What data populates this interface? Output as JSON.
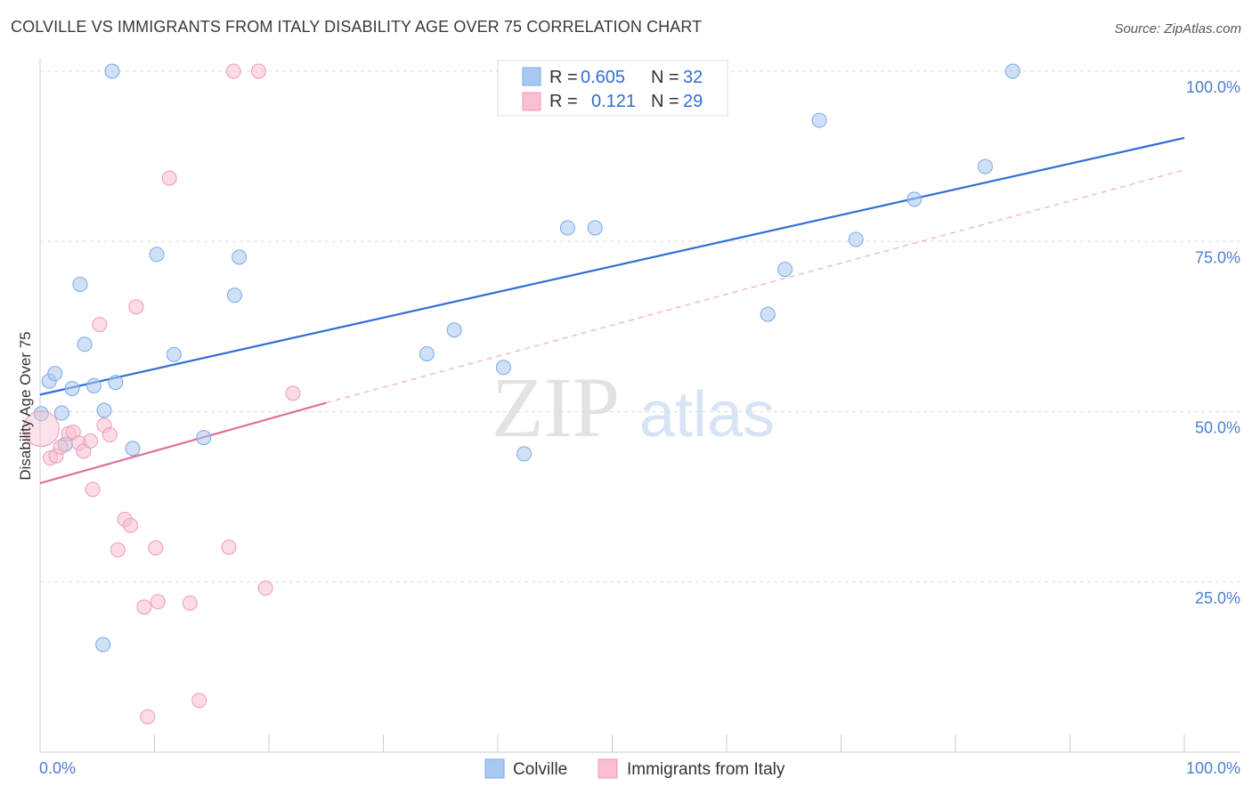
{
  "title": "COLVILLE VS IMMIGRANTS FROM ITALY DISABILITY AGE OVER 75 CORRELATION CHART",
  "source": "Source: ZipAtlas.com",
  "watermark": {
    "zip": "ZIP",
    "atlas": "atlas"
  },
  "chart_data": {
    "type": "scatter",
    "title": "COLVILLE VS IMMIGRANTS FROM ITALY DISABILITY AGE OVER 75 CORRELATION CHART",
    "xlabel": "",
    "ylabel": "Disability Age Over 75",
    "xlim": [
      0,
      100
    ],
    "ylim": [
      0,
      100
    ],
    "x_tick_labels": {
      "min": "0.0%",
      "max": "100.0%"
    },
    "y_tick_labels": [
      "100.0%",
      "75.0%",
      "50.0%",
      "25.0%"
    ],
    "y_tick_values": [
      100,
      75,
      50,
      25
    ],
    "grid": "dashed horizontal",
    "legend": [
      {
        "name": "Colville",
        "r_label": "R =",
        "r": "0.605",
        "n_label": "N =",
        "n": "32",
        "color": "#a9c8f0",
        "stroke": "#7aa9e6"
      },
      {
        "name": "Immigrants from Italy",
        "r_label": "R =",
        "r": "0.121",
        "n_label": "N =",
        "n": "29",
        "color": "#f7bfd0",
        "stroke": "#ee9ab4"
      }
    ],
    "series": [
      {
        "name": "Colville",
        "color": "#a9c8f0",
        "trend": {
          "x": [
            0,
            100
          ],
          "y": [
            52.5,
            90.2
          ],
          "color": "#2f6fd6",
          "style": "solid"
        },
        "points": [
          {
            "x": 0.1,
            "y": 49.7
          },
          {
            "x": 0.8,
            "y": 54.5
          },
          {
            "x": 1.3,
            "y": 55.6
          },
          {
            "x": 1.9,
            "y": 49.8
          },
          {
            "x": 2.2,
            "y": 45.2
          },
          {
            "x": 2.8,
            "y": 53.4
          },
          {
            "x": 3.5,
            "y": 68.7
          },
          {
            "x": 3.9,
            "y": 59.9
          },
          {
            "x": 4.7,
            "y": 53.8
          },
          {
            "x": 5.6,
            "y": 50.2
          },
          {
            "x": 5.5,
            "y": 15.8
          },
          {
            "x": 6.3,
            "y": 100.0
          },
          {
            "x": 6.6,
            "y": 54.3
          },
          {
            "x": 8.1,
            "y": 44.6
          },
          {
            "x": 10.2,
            "y": 73.1
          },
          {
            "x": 11.7,
            "y": 58.4
          },
          {
            "x": 14.3,
            "y": 46.2
          },
          {
            "x": 17.0,
            "y": 67.1
          },
          {
            "x": 17.4,
            "y": 72.7
          },
          {
            "x": 33.8,
            "y": 58.5
          },
          {
            "x": 36.2,
            "y": 62.0
          },
          {
            "x": 40.5,
            "y": 56.5
          },
          {
            "x": 42.3,
            "y": 43.8
          },
          {
            "x": 46.1,
            "y": 77.0
          },
          {
            "x": 48.5,
            "y": 77.0
          },
          {
            "x": 63.6,
            "y": 64.3
          },
          {
            "x": 65.1,
            "y": 70.9
          },
          {
            "x": 68.1,
            "y": 92.8
          },
          {
            "x": 71.3,
            "y": 75.3
          },
          {
            "x": 76.4,
            "y": 81.2
          },
          {
            "x": 82.6,
            "y": 86.0
          },
          {
            "x": 85.0,
            "y": 100.0
          }
        ]
      },
      {
        "name": "Immigrants from Italy",
        "color": "#f7bfd0",
        "trend": {
          "x": [
            0,
            25
          ],
          "y": [
            39.5,
            51.3
          ],
          "color": "#e0709a",
          "style": "solid"
        },
        "trend_extension": {
          "x": [
            25,
            100
          ],
          "y": [
            51.3,
            85.5
          ],
          "color": "#f0a8c0",
          "style": "dashed"
        },
        "points": [
          {
            "x": 0.1,
            "y": 47.5
          },
          {
            "x": 0.9,
            "y": 43.2
          },
          {
            "x": 1.4,
            "y": 43.5
          },
          {
            "x": 1.8,
            "y": 44.8
          },
          {
            "x": 2.5,
            "y": 46.8
          },
          {
            "x": 2.9,
            "y": 47.0
          },
          {
            "x": 3.4,
            "y": 45.4
          },
          {
            "x": 3.8,
            "y": 44.2
          },
          {
            "x": 4.4,
            "y": 45.7
          },
          {
            "x": 4.6,
            "y": 38.6
          },
          {
            "x": 5.2,
            "y": 62.8
          },
          {
            "x": 5.6,
            "y": 48.0
          },
          {
            "x": 6.1,
            "y": 46.6
          },
          {
            "x": 6.8,
            "y": 29.7
          },
          {
            "x": 7.4,
            "y": 34.2
          },
          {
            "x": 7.9,
            "y": 33.3
          },
          {
            "x": 8.4,
            "y": 65.4
          },
          {
            "x": 9.1,
            "y": 21.3
          },
          {
            "x": 9.4,
            "y": 5.2
          },
          {
            "x": 10.1,
            "y": 30.0
          },
          {
            "x": 10.3,
            "y": 22.1
          },
          {
            "x": 11.3,
            "y": 84.3
          },
          {
            "x": 13.1,
            "y": 21.9
          },
          {
            "x": 13.9,
            "y": 7.6
          },
          {
            "x": 16.5,
            "y": 30.1
          },
          {
            "x": 16.9,
            "y": 100.0
          },
          {
            "x": 19.1,
            "y": 100.0
          },
          {
            "x": 19.7,
            "y": 24.1
          },
          {
            "x": 22.1,
            "y": 52.7
          }
        ]
      }
    ]
  }
}
